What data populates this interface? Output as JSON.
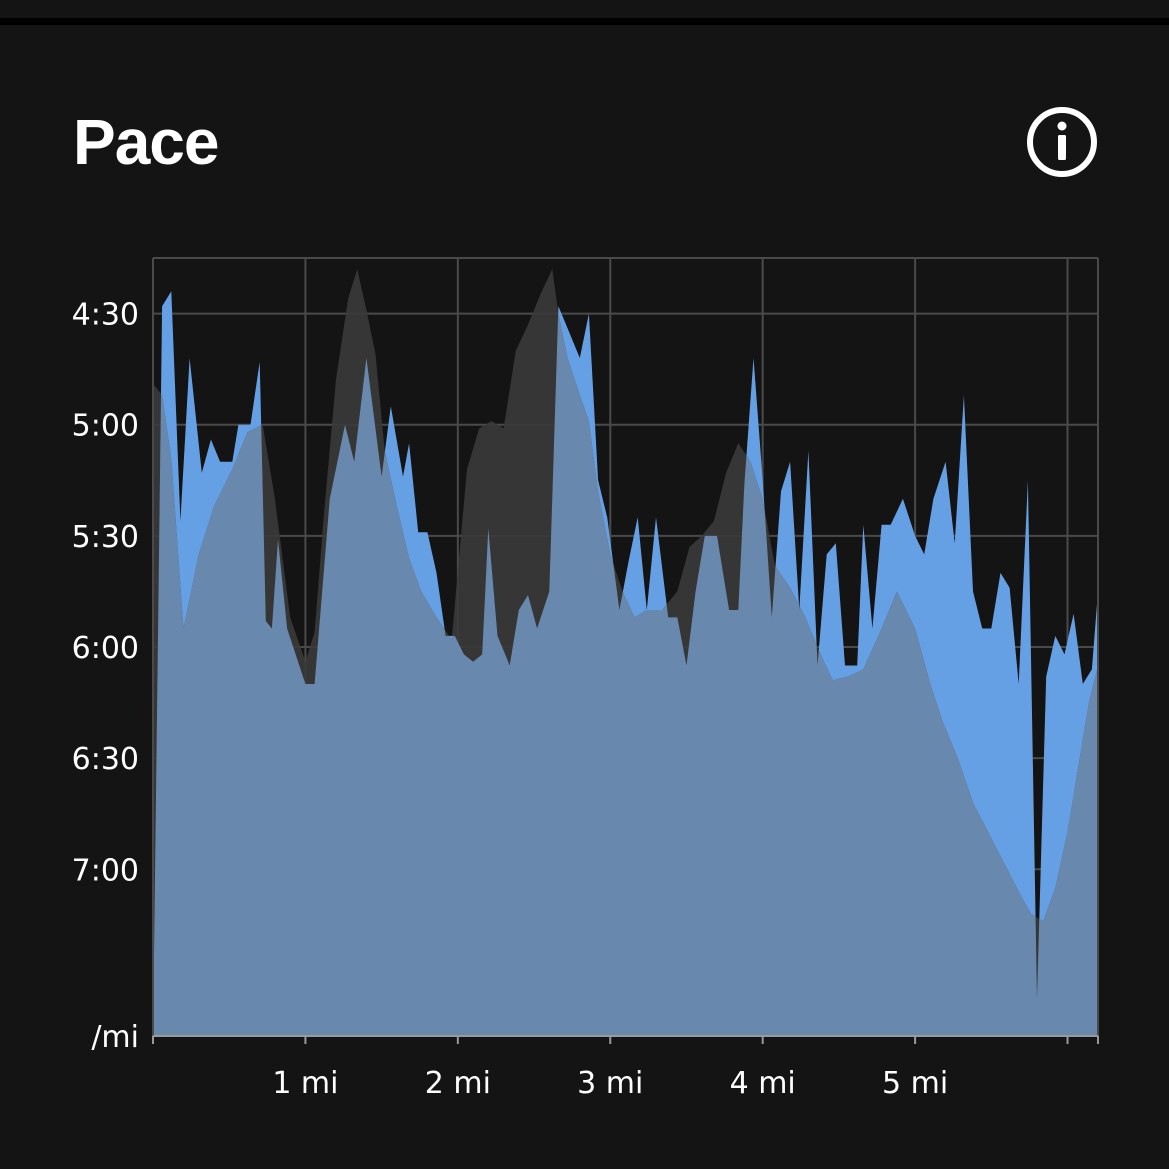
{
  "header": {
    "title": "Pace",
    "info_icon": "info-circle-icon"
  },
  "colors": {
    "background": "#141414",
    "pace_fill": "#66a0e4",
    "elevation_fill": "#3a3a3a",
    "overlap_fill": "#6888ad",
    "grid": "#4a4a4a",
    "text": "#ffffff"
  },
  "chart_data": {
    "type": "area",
    "title": "Pace",
    "xlabel": "",
    "ylabel": "/mi",
    "xlim": [
      0,
      6.2
    ],
    "ylim_seconds_per_mile": [
      255,
      465
    ],
    "y_inverted": true,
    "grid": true,
    "x_ticks": [
      {
        "value": 1,
        "label": "1 mi"
      },
      {
        "value": 2,
        "label": "2 mi"
      },
      {
        "value": 3,
        "label": "3 mi"
      },
      {
        "value": 4,
        "label": "4 mi"
      },
      {
        "value": 5,
        "label": "5 mi"
      }
    ],
    "y_ticks": [
      {
        "value": 270,
        "label": "4:30"
      },
      {
        "value": 300,
        "label": "5:00"
      },
      {
        "value": 330,
        "label": "5:30"
      },
      {
        "value": 360,
        "label": "6:00"
      },
      {
        "value": 390,
        "label": "6:30"
      },
      {
        "value": 420,
        "label": "7:00"
      }
    ],
    "y_unit_label": "/mi",
    "series": [
      {
        "values": [
          [
            0.0,
            465
          ],
          [
            0.06,
            268
          ],
          [
            0.12,
            264
          ],
          [
            0.18,
            326
          ],
          [
            0.24,
            282
          ],
          [
            0.32,
            313
          ],
          [
            0.38,
            304
          ],
          [
            0.44,
            310
          ],
          [
            0.52,
            310
          ],
          [
            0.56,
            300
          ],
          [
            0.64,
            300
          ],
          [
            0.7,
            283
          ],
          [
            0.74,
            353
          ],
          [
            0.78,
            355
          ],
          [
            0.82,
            331
          ],
          [
            0.88,
            355
          ],
          [
            1.0,
            370
          ],
          [
            1.06,
            370
          ],
          [
            1.16,
            320
          ],
          [
            1.26,
            300
          ],
          [
            1.32,
            310
          ],
          [
            1.4,
            282
          ],
          [
            1.5,
            314
          ],
          [
            1.56,
            295
          ],
          [
            1.64,
            314
          ],
          [
            1.68,
            305
          ],
          [
            1.74,
            329
          ],
          [
            1.8,
            329
          ],
          [
            1.86,
            340
          ],
          [
            1.92,
            357
          ],
          [
            1.98,
            357
          ],
          [
            2.04,
            362
          ],
          [
            2.1,
            364
          ],
          [
            2.16,
            362
          ],
          [
            2.2,
            328
          ],
          [
            2.26,
            357
          ],
          [
            2.34,
            365
          ],
          [
            2.4,
            350
          ],
          [
            2.46,
            346
          ],
          [
            2.52,
            355
          ],
          [
            2.56,
            350
          ],
          [
            2.6,
            345
          ],
          [
            2.66,
            268
          ],
          [
            2.72,
            274
          ],
          [
            2.8,
            282
          ],
          [
            2.86,
            270
          ],
          [
            2.92,
            315
          ],
          [
            2.98,
            325
          ],
          [
            3.06,
            350
          ],
          [
            3.12,
            337
          ],
          [
            3.18,
            325
          ],
          [
            3.24,
            350
          ],
          [
            3.3,
            325
          ],
          [
            3.38,
            352
          ],
          [
            3.44,
            352
          ],
          [
            3.5,
            365
          ],
          [
            3.56,
            345
          ],
          [
            3.62,
            330
          ],
          [
            3.7,
            330
          ],
          [
            3.78,
            350
          ],
          [
            3.84,
            350
          ],
          [
            3.88,
            316
          ],
          [
            3.94,
            282
          ],
          [
            4.0,
            315
          ],
          [
            4.06,
            352
          ],
          [
            4.12,
            318
          ],
          [
            4.18,
            310
          ],
          [
            4.24,
            350
          ],
          [
            4.3,
            307
          ],
          [
            4.36,
            365
          ],
          [
            4.42,
            335
          ],
          [
            4.48,
            332
          ],
          [
            4.54,
            365
          ],
          [
            4.62,
            365
          ],
          [
            4.66,
            327
          ],
          [
            4.72,
            355
          ],
          [
            4.78,
            327
          ],
          [
            4.84,
            327
          ],
          [
            4.92,
            320
          ],
          [
            5.0,
            330
          ],
          [
            5.06,
            335
          ],
          [
            5.12,
            320
          ],
          [
            5.2,
            310
          ],
          [
            5.26,
            332
          ],
          [
            5.32,
            292
          ],
          [
            5.38,
            345
          ],
          [
            5.44,
            355
          ],
          [
            5.5,
            355
          ],
          [
            5.56,
            340
          ],
          [
            5.62,
            344
          ],
          [
            5.68,
            370
          ],
          [
            5.74,
            315
          ],
          [
            5.8,
            455
          ],
          [
            5.86,
            368
          ],
          [
            5.92,
            357
          ],
          [
            5.98,
            362
          ],
          [
            6.04,
            351
          ],
          [
            6.1,
            370
          ],
          [
            6.16,
            366
          ],
          [
            6.2,
            345
          ]
        ]
      },
      {
        "values": [
          [
            0.0,
            289
          ],
          [
            0.06,
            292
          ],
          [
            0.12,
            309
          ],
          [
            0.2,
            355
          ],
          [
            0.3,
            335
          ],
          [
            0.4,
            322
          ],
          [
            0.52,
            312
          ],
          [
            0.62,
            302
          ],
          [
            0.72,
            300
          ],
          [
            0.8,
            320
          ],
          [
            0.9,
            352
          ],
          [
            1.0,
            364
          ],
          [
            1.06,
            356
          ],
          [
            1.12,
            325
          ],
          [
            1.2,
            288
          ],
          [
            1.28,
            266
          ],
          [
            1.34,
            258
          ],
          [
            1.4,
            269
          ],
          [
            1.46,
            281
          ],
          [
            1.52,
            307
          ],
          [
            1.6,
            322
          ],
          [
            1.68,
            336
          ],
          [
            1.76,
            345
          ],
          [
            1.86,
            352
          ],
          [
            1.96,
            358
          ],
          [
            2.06,
            312
          ],
          [
            2.14,
            301
          ],
          [
            2.22,
            299
          ],
          [
            2.3,
            301
          ],
          [
            2.38,
            280
          ],
          [
            2.46,
            273
          ],
          [
            2.54,
            265
          ],
          [
            2.62,
            258
          ],
          [
            2.66,
            270
          ],
          [
            2.72,
            282
          ],
          [
            2.8,
            292
          ],
          [
            2.86,
            299
          ],
          [
            2.92,
            318
          ],
          [
            3.0,
            335
          ],
          [
            3.08,
            345
          ],
          [
            3.16,
            352
          ],
          [
            3.24,
            350
          ],
          [
            3.34,
            350
          ],
          [
            3.44,
            345
          ],
          [
            3.52,
            333
          ],
          [
            3.6,
            330
          ],
          [
            3.68,
            326
          ],
          [
            3.76,
            313
          ],
          [
            3.84,
            305
          ],
          [
            3.92,
            310
          ],
          [
            4.0,
            320
          ],
          [
            4.08,
            338
          ],
          [
            4.18,
            344
          ],
          [
            4.28,
            352
          ],
          [
            4.38,
            362
          ],
          [
            4.46,
            369
          ],
          [
            4.56,
            368
          ],
          [
            4.66,
            366
          ],
          [
            4.78,
            355
          ],
          [
            4.88,
            345
          ],
          [
            5.0,
            355
          ],
          [
            5.1,
            370
          ],
          [
            5.18,
            380
          ],
          [
            5.28,
            390
          ],
          [
            5.38,
            402
          ],
          [
            5.48,
            410
          ],
          [
            5.58,
            418
          ],
          [
            5.68,
            426
          ],
          [
            5.76,
            432
          ],
          [
            5.84,
            434
          ],
          [
            5.92,
            425
          ],
          [
            6.0,
            410
          ],
          [
            6.08,
            390
          ],
          [
            6.14,
            375
          ],
          [
            6.2,
            365
          ]
        ]
      }
    ]
  }
}
